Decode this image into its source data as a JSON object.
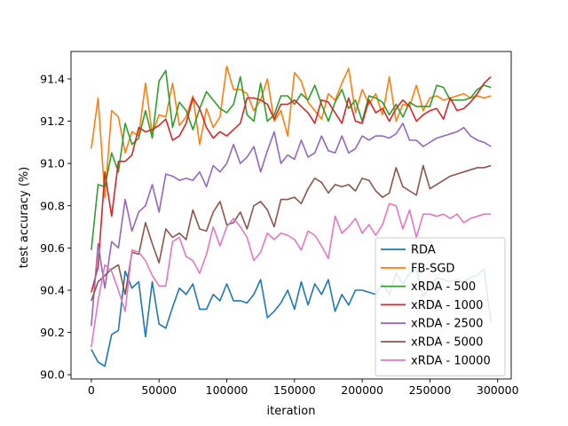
{
  "chart_data": {
    "type": "line",
    "xlabel": "iteration",
    "ylabel": "test accuracy (%)",
    "xlim": [
      -15000,
      310000
    ],
    "ylim": [
      89.98,
      91.53
    ],
    "xticks": [
      0,
      50000,
      100000,
      150000,
      200000,
      250000,
      300000
    ],
    "yticks": [
      90.0,
      90.2,
      90.4,
      90.6,
      90.8,
      91.0,
      91.2,
      91.4
    ],
    "grid": false,
    "legend_position": "lower-right",
    "x": [
      0,
      5000,
      10000,
      15000,
      20000,
      25000,
      30000,
      35000,
      40000,
      45000,
      50000,
      55000,
      60000,
      65000,
      70000,
      75000,
      80000,
      85000,
      90000,
      95000,
      100000,
      105000,
      110000,
      115000,
      120000,
      125000,
      130000,
      135000,
      140000,
      145000,
      150000,
      155000,
      160000,
      165000,
      170000,
      175000,
      180000,
      185000,
      190000,
      195000,
      200000,
      205000,
      210000,
      215000,
      220000,
      225000,
      230000,
      235000,
      240000,
      245000,
      250000,
      255000,
      260000,
      265000,
      270000,
      275000,
      280000,
      285000,
      290000,
      295000
    ],
    "series": [
      {
        "name": "RDA",
        "color": "#1f77b4",
        "values": [
          90.12,
          90.06,
          90.04,
          90.19,
          90.21,
          90.49,
          90.41,
          90.44,
          90.18,
          90.44,
          90.24,
          90.22,
          90.32,
          90.41,
          90.38,
          90.43,
          90.31,
          90.31,
          90.38,
          90.35,
          90.43,
          90.35,
          90.35,
          90.34,
          90.38,
          90.45,
          90.27,
          90.3,
          90.34,
          90.4,
          90.31,
          90.44,
          90.33,
          90.43,
          90.38,
          90.45,
          90.3,
          90.38,
          90.33,
          90.4,
          90.4,
          90.39,
          90.38,
          90.43,
          90.38,
          90.48,
          90.43,
          90.48,
          90.5,
          90.37,
          90.42,
          90.46,
          90.45,
          90.44,
          90.45,
          90.44,
          90.46,
          90.47,
          90.5,
          90.25
        ]
      },
      {
        "name": "FB-SGD",
        "color": "#ff7f0e",
        "values": [
          91.07,
          91.31,
          90.84,
          91.25,
          91.22,
          91.05,
          91.15,
          91.13,
          91.38,
          91.14,
          91.23,
          91.22,
          91.38,
          91.18,
          91.22,
          91.32,
          91.09,
          91.26,
          91.17,
          91.22,
          91.46,
          91.35,
          91.35,
          91.33,
          91.25,
          91.3,
          91.4,
          91.2,
          91.25,
          91.13,
          91.43,
          91.39,
          91.29,
          91.25,
          91.21,
          91.33,
          91.3,
          91.38,
          91.45,
          91.24,
          91.35,
          91.28,
          91.33,
          91.23,
          91.41,
          91.2,
          91.28,
          91.27,
          91.37,
          91.25,
          91.31,
          91.32,
          91.3,
          91.31,
          91.32,
          91.33,
          91.31,
          91.32,
          91.31,
          91.32
        ]
      },
      {
        "name": "xRDA - 500",
        "color": "#2ca02c",
        "values": [
          90.59,
          90.9,
          90.89,
          91.05,
          90.96,
          91.19,
          91.09,
          91.12,
          91.25,
          91.12,
          91.39,
          91.44,
          91.17,
          91.29,
          91.25,
          91.16,
          91.26,
          91.34,
          91.3,
          91.26,
          91.24,
          91.28,
          91.41,
          91.23,
          91.2,
          91.38,
          91.2,
          91.23,
          91.32,
          91.32,
          91.28,
          91.33,
          91.3,
          91.37,
          91.28,
          91.2,
          91.29,
          91.35,
          91.26,
          91.3,
          91.2,
          91.32,
          91.31,
          91.29,
          91.23,
          91.28,
          91.22,
          91.29,
          91.27,
          91.27,
          91.27,
          91.37,
          91.36,
          91.3,
          91.3,
          91.3,
          91.31,
          91.35,
          91.37,
          91.36
        ]
      },
      {
        "name": "xRDA - 1000",
        "color": "#d62728",
        "values": [
          90.39,
          90.51,
          90.96,
          90.75,
          91.01,
          91.01,
          91.04,
          91.17,
          91.15,
          91.16,
          91.18,
          91.21,
          91.11,
          91.13,
          91.19,
          91.31,
          91.26,
          91.17,
          91.12,
          91.15,
          91.13,
          91.16,
          91.19,
          91.31,
          91.31,
          91.3,
          91.28,
          91.21,
          91.28,
          91.28,
          91.3,
          91.27,
          91.24,
          91.19,
          91.3,
          91.29,
          91.24,
          91.19,
          91.31,
          91.2,
          91.19,
          91.3,
          91.24,
          91.26,
          91.2,
          91.26,
          91.3,
          91.27,
          91.2,
          91.23,
          91.25,
          91.26,
          91.21,
          91.31,
          91.25,
          91.26,
          91.29,
          91.33,
          91.38,
          91.41
        ]
      },
      {
        "name": "xRDA - 2500",
        "color": "#9467bd",
        "values": [
          90.23,
          90.62,
          90.41,
          90.63,
          90.6,
          90.83,
          90.68,
          90.77,
          90.8,
          90.9,
          90.77,
          90.95,
          90.94,
          90.92,
          90.93,
          90.92,
          90.96,
          90.89,
          90.99,
          90.96,
          91.0,
          91.09,
          91.0,
          91.03,
          91.08,
          90.96,
          91.06,
          91.15,
          91.0,
          91.04,
          91.02,
          91.11,
          91.03,
          91.05,
          91.13,
          91.06,
          91.05,
          91.13,
          91.05,
          91.07,
          91.13,
          91.11,
          91.13,
          91.13,
          91.12,
          91.14,
          91.19,
          91.11,
          91.11,
          91.08,
          91.1,
          91.12,
          91.13,
          91.14,
          91.15,
          91.17,
          91.13,
          91.11,
          91.1,
          91.08
        ]
      },
      {
        "name": "xRDA - 5000",
        "color": "#8c564b",
        "values": [
          90.35,
          90.44,
          90.47,
          90.5,
          90.52,
          90.38,
          90.58,
          90.57,
          90.72,
          90.62,
          90.53,
          90.69,
          90.65,
          90.67,
          90.64,
          90.78,
          90.69,
          90.68,
          90.77,
          90.82,
          90.71,
          90.72,
          90.77,
          90.69,
          90.8,
          90.82,
          90.78,
          90.7,
          90.83,
          90.83,
          90.84,
          90.81,
          90.88,
          90.93,
          90.91,
          90.86,
          90.9,
          90.89,
          90.9,
          90.87,
          90.93,
          90.92,
          90.87,
          90.84,
          90.86,
          90.98,
          90.89,
          90.87,
          90.85,
          90.99,
          90.88,
          90.9,
          90.92,
          90.94,
          90.95,
          90.96,
          90.97,
          90.98,
          90.98,
          90.99
        ]
      },
      {
        "name": "xRDA - 10000",
        "color": "#e377c2",
        "values": [
          90.13,
          90.35,
          90.52,
          90.49,
          90.4,
          90.3,
          90.59,
          90.58,
          90.54,
          90.47,
          90.42,
          90.42,
          90.63,
          90.65,
          90.56,
          90.54,
          90.48,
          90.57,
          90.7,
          90.61,
          90.7,
          90.74,
          90.7,
          90.65,
          90.54,
          90.58,
          90.67,
          90.64,
          90.67,
          90.66,
          90.64,
          90.59,
          90.68,
          90.66,
          90.61,
          90.55,
          90.75,
          90.67,
          90.7,
          90.74,
          90.67,
          90.71,
          90.66,
          90.71,
          90.81,
          90.8,
          90.69,
          90.78,
          90.65,
          90.76,
          90.76,
          90.75,
          90.76,
          90.74,
          90.76,
          90.72,
          90.74,
          90.75,
          90.76,
          90.76
        ]
      }
    ]
  }
}
